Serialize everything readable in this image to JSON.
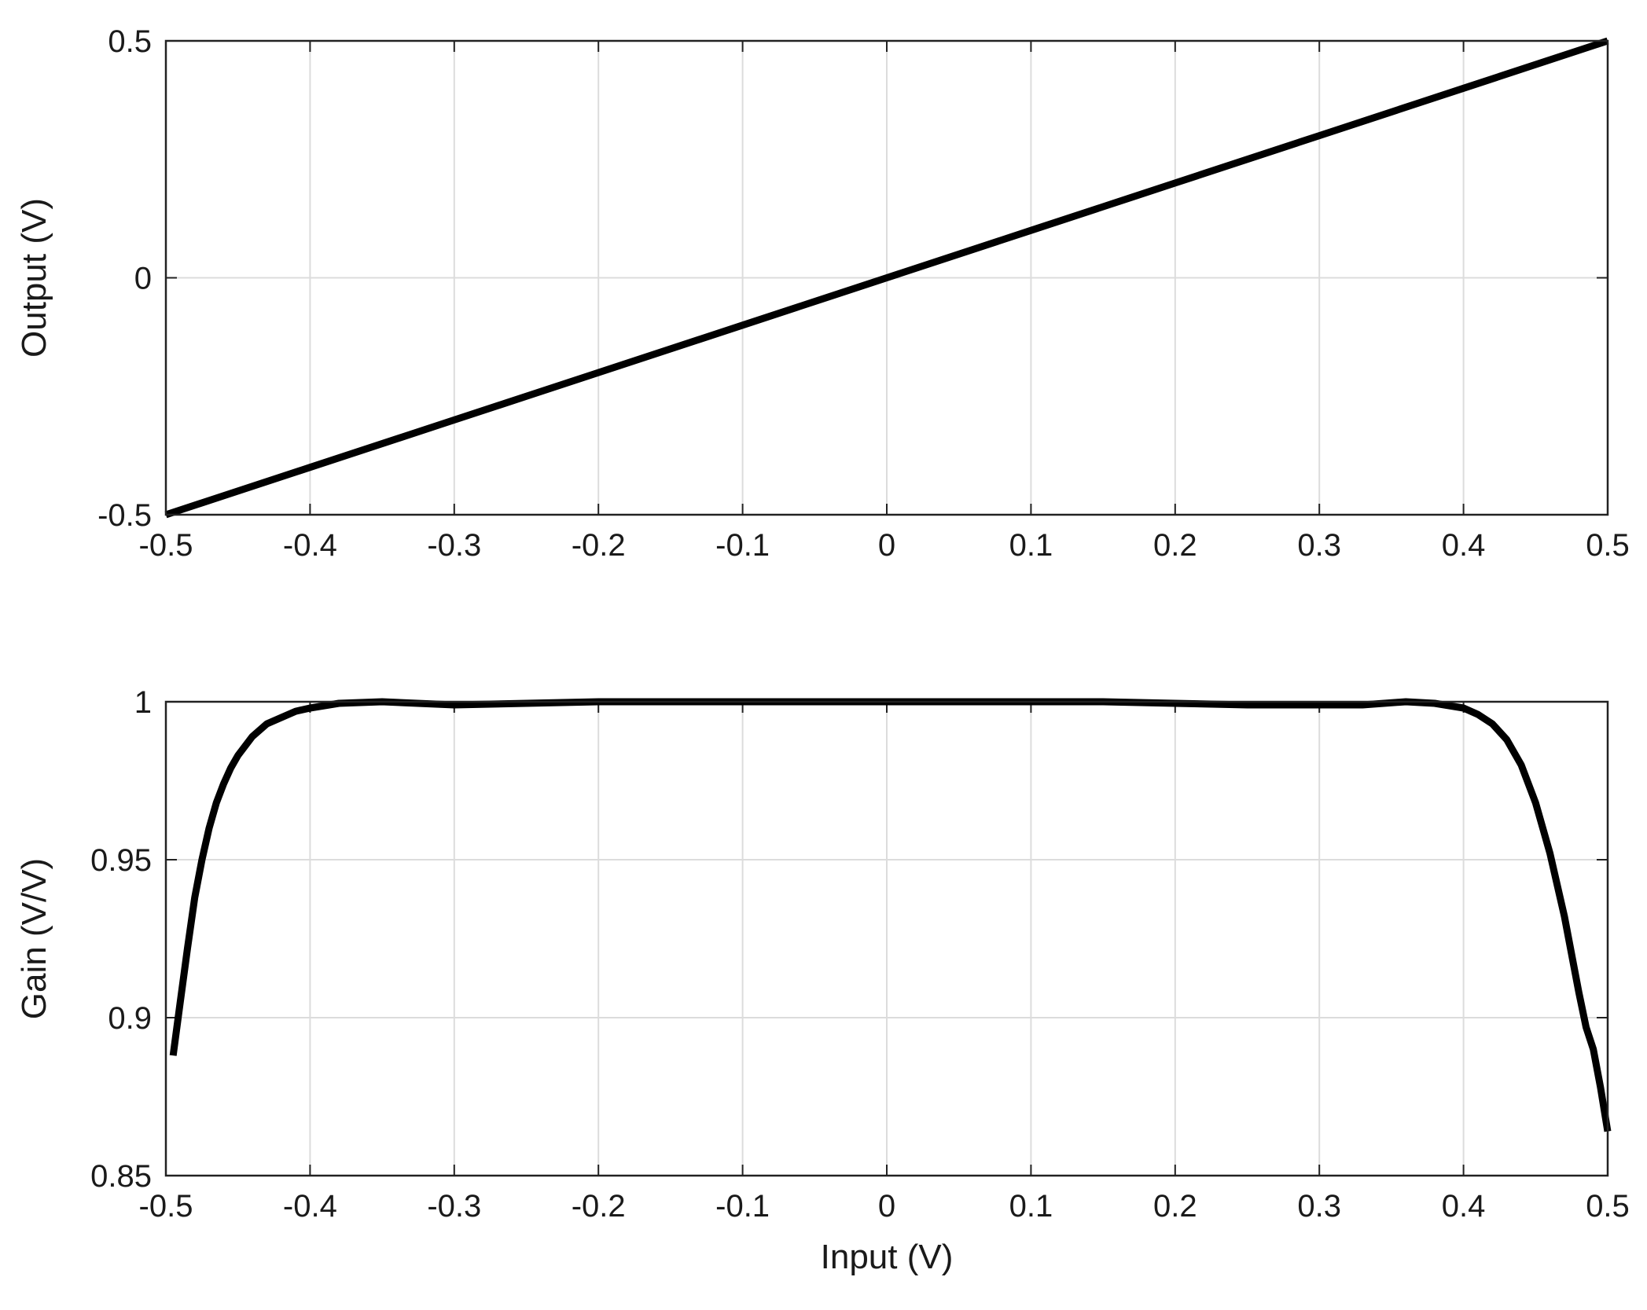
{
  "chart_data": [
    {
      "type": "line",
      "title": "",
      "xlabel": "",
      "ylabel": "Output (V)",
      "xlim": [
        -0.5,
        0.5
      ],
      "ylim": [
        -0.5,
        0.5
      ],
      "xticks": [
        "-0.5",
        "-0.4",
        "-0.3",
        "-0.2",
        "-0.1",
        "0",
        "0.1",
        "0.2",
        "0.3",
        "0.4",
        "0.5"
      ],
      "yticks": [
        "-0.5",
        "0",
        "0.5"
      ],
      "grid": true,
      "series": [
        {
          "x": [
            -0.5,
            -0.4,
            -0.3,
            -0.2,
            -0.1,
            0,
            0.1,
            0.2,
            0.3,
            0.4,
            0.5
          ],
          "y": [
            -0.5,
            -0.4,
            -0.3,
            -0.2,
            -0.1,
            0,
            0.1,
            0.2,
            0.3,
            0.4,
            0.5
          ],
          "color": "#000000"
        }
      ]
    },
    {
      "type": "line",
      "title": "",
      "xlabel": "Input (V)",
      "ylabel": "Gain (V/V)",
      "xlim": [
        -0.5,
        0.5
      ],
      "ylim": [
        0.85,
        1.0
      ],
      "xticks": [
        "-0.5",
        "-0.4",
        "-0.3",
        "-0.2",
        "-0.1",
        "0",
        "0.1",
        "0.2",
        "0.3",
        "0.4",
        "0.5"
      ],
      "yticks": [
        "0.85",
        "0.9",
        "0.95",
        "1"
      ],
      "grid": true,
      "series": [
        {
          "x": [
            -0.495,
            -0.49,
            -0.485,
            -0.48,
            -0.475,
            -0.47,
            -0.465,
            -0.46,
            -0.455,
            -0.45,
            -0.44,
            -0.43,
            -0.42,
            -0.41,
            -0.4,
            -0.38,
            -0.35,
            -0.3,
            -0.25,
            -0.2,
            -0.15,
            -0.1,
            -0.05,
            0,
            0.05,
            0.1,
            0.15,
            0.2,
            0.25,
            0.3,
            0.33,
            0.36,
            0.38,
            0.4,
            0.41,
            0.42,
            0.43,
            0.44,
            0.45,
            0.46,
            0.47,
            0.48,
            0.485,
            0.49,
            0.495,
            0.5
          ],
          "y": [
            0.888,
            0.905,
            0.922,
            0.938,
            0.95,
            0.96,
            0.968,
            0.974,
            0.979,
            0.983,
            0.989,
            0.993,
            0.995,
            0.997,
            0.998,
            0.9995,
            1.0,
            0.999,
            0.9995,
            1.0,
            1.0,
            1.0,
            1.0,
            1.0,
            1.0,
            1.0,
            1.0,
            0.9995,
            0.999,
            0.999,
            0.999,
            1.0,
            0.9995,
            0.998,
            0.996,
            0.993,
            0.988,
            0.98,
            0.968,
            0.952,
            0.932,
            0.908,
            0.897,
            0.89,
            0.878,
            0.864
          ],
          "color": "#000000"
        }
      ]
    }
  ]
}
